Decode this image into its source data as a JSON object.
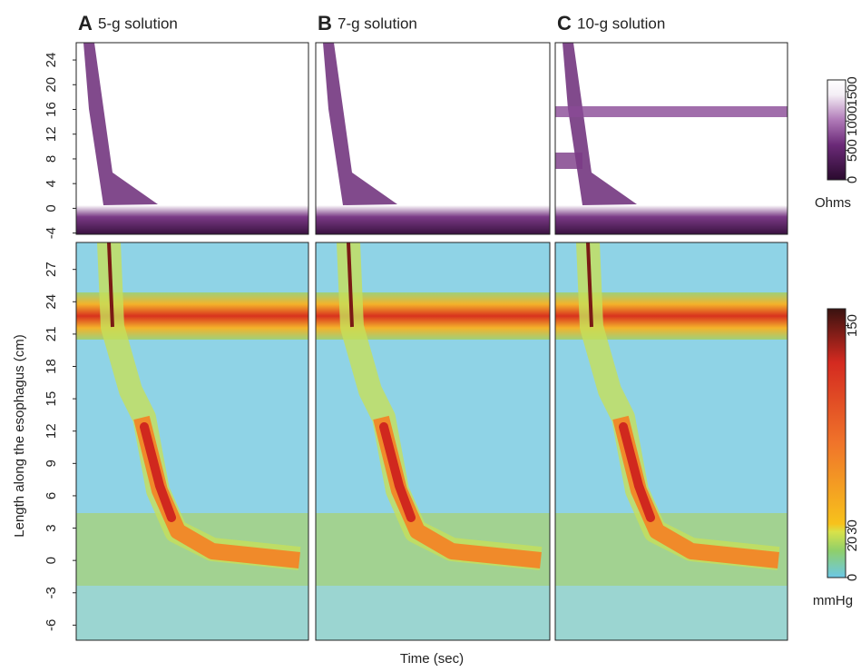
{
  "chart_data": {
    "type": "heatmap",
    "ylabel": "Length along the esophagus (cm)",
    "xlabel": "Time (sec)",
    "panels": [
      {
        "letter": "A",
        "title": "5-g solution"
      },
      {
        "letter": "B",
        "title": "7-g solution"
      },
      {
        "letter": "C",
        "title": "10-g solution"
      }
    ],
    "impedance": {
      "ylim": [
        -4.2,
        26.8
      ],
      "yticks": [
        -4,
        0,
        4,
        8,
        12,
        16,
        20,
        24
      ],
      "colorbar": {
        "label": "Ohms",
        "lim": [
          0,
          1700
        ],
        "ticks": [
          0,
          500,
          1000,
          1500
        ]
      }
    },
    "pressure": {
      "ylim": [
        -7.4,
        29.5
      ],
      "yticks": [
        -6,
        -3,
        0,
        3,
        6,
        9,
        12,
        15,
        18,
        21,
        24,
        27
      ],
      "colorbar": {
        "label": "mmHg",
        "lim": [
          0,
          160
        ],
        "ticks": [
          0,
          20,
          30,
          150
        ]
      }
    }
  }
}
